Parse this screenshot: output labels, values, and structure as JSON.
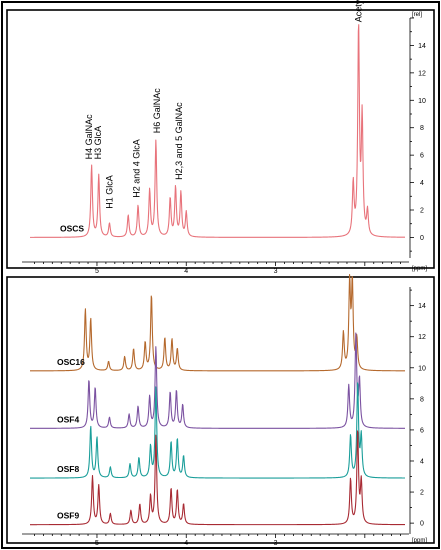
{
  "chart_data": [
    {
      "type": "line",
      "panel": "top",
      "x_unit": "[ppm]",
      "y_unit": "[rel]",
      "xlim": [
        5.75,
        1.55
      ],
      "ylim": [
        -1.5,
        16
      ],
      "x_ticks": [
        5,
        4,
        3
      ],
      "y_ticks": [
        0,
        2,
        4,
        6,
        8,
        10,
        12,
        14
      ],
      "series": [
        {
          "name": "OSCS",
          "color": "#e8737b",
          "baseline": 0,
          "scale": 1,
          "peaks": [
            {
              "x": 5.06,
              "y": 5.2
            },
            {
              "x": 4.98,
              "y": 4.5
            },
            {
              "x": 4.86,
              "y": 1.0
            },
            {
              "x": 4.65,
              "y": 1.6
            },
            {
              "x": 4.54,
              "y": 2.3
            },
            {
              "x": 4.41,
              "y": 3.4
            },
            {
              "x": 4.34,
              "y": 7.0
            },
            {
              "x": 4.18,
              "y": 2.8
            },
            {
              "x": 4.12,
              "y": 3.6
            },
            {
              "x": 4.06,
              "y": 3.2
            },
            {
              "x": 4.0,
              "y": 1.8
            },
            {
              "x": 2.13,
              "y": 3.8
            },
            {
              "x": 2.07,
              "y": 15.2
            },
            {
              "x": 2.03,
              "y": 8.5
            },
            {
              "x": 1.97,
              "y": 1.8
            }
          ]
        }
      ],
      "annotations": [
        {
          "text": "H4 GalNAc",
          "x": 5.09,
          "y": 5.4
        },
        {
          "text": "H3 GlcA",
          "x": 4.99,
          "y": 5.4
        },
        {
          "text": "H1 GlcA",
          "x": 4.86,
          "y": 1.8
        },
        {
          "text": "H2 and 4 GlcA",
          "x": 4.56,
          "y": 2.6
        },
        {
          "text": "H6 GalNAc",
          "x": 4.33,
          "y": 7.3
        },
        {
          "text": "H2,3 and 5 GalNAc",
          "x": 4.08,
          "y": 3.9
        },
        {
          "text": "Acetyl",
          "x": 2.07,
          "y": 15.4
        }
      ]
    },
    {
      "type": "line",
      "panel": "bottom",
      "x_unit": "[ppm]",
      "y_unit": "",
      "xlim": [
        5.75,
        1.55
      ],
      "ylim": [
        -0.7,
        15.2
      ],
      "x_ticks": [
        5,
        4,
        3
      ],
      "y_ticks": [
        0,
        2,
        4,
        6,
        8,
        10,
        12,
        14
      ],
      "series": [
        {
          "name": "OSC16",
          "color": "#b5692d",
          "baseline": 9.8,
          "scale": 0.5,
          "peaks": [
            {
              "x": 5.13,
              "y": 7.8
            },
            {
              "x": 5.07,
              "y": 6.6
            },
            {
              "x": 4.87,
              "y": 1.2
            },
            {
              "x": 4.69,
              "y": 1.8
            },
            {
              "x": 4.59,
              "y": 2.8
            },
            {
              "x": 4.46,
              "y": 3.6
            },
            {
              "x": 4.39,
              "y": 9.8
            },
            {
              "x": 4.24,
              "y": 4.2
            },
            {
              "x": 4.16,
              "y": 4.0
            },
            {
              "x": 4.1,
              "y": 2.8
            },
            {
              "x": 2.24,
              "y": 4.8
            },
            {
              "x": 2.17,
              "y": 11.0
            },
            {
              "x": 2.14,
              "y": 11.0
            },
            {
              "x": 2.09,
              "y": 4.0
            }
          ]
        },
        {
          "name": "OSF4",
          "color": "#7b52a1",
          "baseline": 6.1,
          "scale": 0.5,
          "peaks": [
            {
              "x": 5.09,
              "y": 6.2
            },
            {
              "x": 5.02,
              "y": 5.2
            },
            {
              "x": 4.86,
              "y": 1.4
            },
            {
              "x": 4.64,
              "y": 1.8
            },
            {
              "x": 4.54,
              "y": 2.8
            },
            {
              "x": 4.41,
              "y": 4.0
            },
            {
              "x": 4.34,
              "y": 10.4
            },
            {
              "x": 4.18,
              "y": 4.6
            },
            {
              "x": 4.11,
              "y": 4.8
            },
            {
              "x": 4.04,
              "y": 3.0
            },
            {
              "x": 2.18,
              "y": 5.4
            },
            {
              "x": 2.1,
              "y": 11.8
            },
            {
              "x": 2.06,
              "y": 6.0
            }
          ]
        },
        {
          "name": "OSF8",
          "color": "#1a9e9a",
          "baseline": 2.9,
          "scale": 0.5,
          "peaks": [
            {
              "x": 5.07,
              "y": 6.6
            },
            {
              "x": 5.0,
              "y": 5.2
            },
            {
              "x": 4.85,
              "y": 1.4
            },
            {
              "x": 4.63,
              "y": 1.8
            },
            {
              "x": 4.53,
              "y": 2.6
            },
            {
              "x": 4.4,
              "y": 4.0
            },
            {
              "x": 4.34,
              "y": 11.6
            },
            {
              "x": 4.17,
              "y": 4.6
            },
            {
              "x": 4.1,
              "y": 5.0
            },
            {
              "x": 4.03,
              "y": 2.8
            },
            {
              "x": 2.16,
              "y": 5.4
            },
            {
              "x": 2.08,
              "y": 12.2
            },
            {
              "x": 2.04,
              "y": 5.2
            }
          ]
        },
        {
          "name": "OSF9",
          "color": "#a82a33",
          "baseline": -0.1,
          "scale": 0.5,
          "peaks": [
            {
              "x": 5.05,
              "y": 6.2
            },
            {
              "x": 4.98,
              "y": 5.0
            },
            {
              "x": 4.85,
              "y": 1.4
            },
            {
              "x": 4.62,
              "y": 1.8
            },
            {
              "x": 4.52,
              "y": 2.6
            },
            {
              "x": 4.4,
              "y": 3.6
            },
            {
              "x": 4.34,
              "y": 11.4
            },
            {
              "x": 4.17,
              "y": 4.6
            },
            {
              "x": 4.1,
              "y": 4.4
            },
            {
              "x": 4.03,
              "y": 2.6
            },
            {
              "x": 2.16,
              "y": 5.8
            },
            {
              "x": 2.08,
              "y": 12.0
            },
            {
              "x": 2.04,
              "y": 5.4
            }
          ]
        }
      ]
    }
  ]
}
